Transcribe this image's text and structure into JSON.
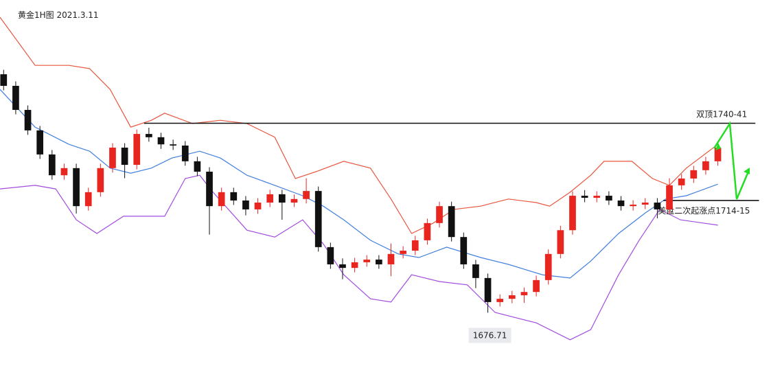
{
  "chart_data": {
    "type": "candlestick",
    "title": "黄金1H图  2021.3.11",
    "up_color": "#e8251f",
    "down_color": "#111111",
    "xlim": [
      -0.3,
      64.3
    ],
    "ylim": [
      1656,
      1782
    ],
    "open": [
      1757.0,
      1753.1,
      1745.0,
      1738.1,
      1730.0,
      1723.0,
      1725.4,
      1712.6,
      1717.3,
      1725.4,
      1732.3,
      1726.5,
      1736.9,
      1735.8,
      1733.4,
      1733.0,
      1727.7,
      1724.2,
      1712.6,
      1717.3,
      1714.5,
      1711.5,
      1713.8,
      1716.6,
      1713.8,
      1715.0,
      1717.7,
      1698.8,
      1693.0,
      1691.8,
      1693.7,
      1694.6,
      1693.0,
      1696.5,
      1697.6,
      1701.1,
      1706.9,
      1712.6,
      1702.2,
      1693.0,
      1688.4,
      1680.3,
      1681.4,
      1682.6,
      1683.7,
      1687.7,
      1696.5,
      1704.5,
      1716.1,
      1715.4,
      1716.1,
      1714.5,
      1712.6,
      1713.1,
      1713.8,
      1711.5,
      1719.6,
      1721.9,
      1724.7,
      1727.7
    ],
    "high": [
      1758.5,
      1754.6,
      1746.5,
      1739.6,
      1731.5,
      1726.9,
      1726.9,
      1718.8,
      1726.9,
      1733.8,
      1733.8,
      1738.4,
      1739.0,
      1737.3,
      1735.0,
      1734.5,
      1729.2,
      1725.7,
      1718.8,
      1718.8,
      1716.0,
      1715.3,
      1718.1,
      1718.1,
      1716.5,
      1722.0,
      1719.2,
      1700.3,
      1695.0,
      1695.2,
      1696.1,
      1696.1,
      1700.0,
      1699.1,
      1702.6,
      1708.4,
      1714.1,
      1714.1,
      1703.7,
      1694.5,
      1689.9,
      1682.9,
      1684.1,
      1685.2,
      1689.2,
      1698.0,
      1706.0,
      1717.6,
      1718.0,
      1717.6,
      1717.6,
      1716.0,
      1714.6,
      1715.3,
      1715.3,
      1722.0,
      1723.4,
      1726.2,
      1729.2,
      1734.5
    ],
    "low": [
      1751.6,
      1743.5,
      1736.6,
      1728.5,
      1721.5,
      1721.5,
      1710.1,
      1711.1,
      1715.8,
      1723.9,
      1722.0,
      1725.0,
      1734.3,
      1731.9,
      1731.5,
      1726.2,
      1722.7,
      1703.0,
      1711.1,
      1713.0,
      1709.5,
      1710.0,
      1712.3,
      1708.0,
      1712.3,
      1713.5,
      1697.3,
      1691.5,
      1688.0,
      1690.3,
      1692.2,
      1691.5,
      1689.0,
      1695.0,
      1696.1,
      1699.6,
      1705.4,
      1700.7,
      1691.5,
      1685.0,
      1676.71,
      1678.8,
      1679.9,
      1680.0,
      1682.2,
      1686.2,
      1695.0,
      1703.0,
      1713.9,
      1713.9,
      1713.0,
      1711.1,
      1711.1,
      1711.6,
      1708.5,
      1710.0,
      1718.1,
      1720.4,
      1723.2,
      1726.2
    ],
    "close": [
      1753.1,
      1745.0,
      1738.1,
      1730.0,
      1723.0,
      1725.4,
      1712.6,
      1717.3,
      1725.4,
      1732.3,
      1726.5,
      1736.9,
      1735.8,
      1733.4,
      1733.0,
      1727.7,
      1724.2,
      1712.6,
      1717.3,
      1714.5,
      1711.5,
      1713.8,
      1716.6,
      1713.8,
      1715.0,
      1717.7,
      1698.8,
      1693.0,
      1691.8,
      1693.7,
      1694.6,
      1693.0,
      1696.5,
      1697.6,
      1701.1,
      1706.9,
      1712.6,
      1702.2,
      1693.0,
      1688.4,
      1680.3,
      1681.4,
      1682.6,
      1683.7,
      1687.7,
      1696.5,
      1704.5,
      1716.1,
      1715.4,
      1716.1,
      1714.5,
      1712.6,
      1713.1,
      1713.8,
      1711.5,
      1719.6,
      1721.9,
      1724.7,
      1727.7,
      1732.3
    ],
    "bands": [
      {
        "color": "#e8553c",
        "x": [
          -0.3,
          2.6,
          5.4,
          7.1,
          8.8,
          10.5,
          12.2,
          13.3,
          15.6,
          17.9,
          20.1,
          22.4,
          24.1,
          25.8,
          28.1,
          30.3,
          32.0,
          33.7,
          35.5,
          37.2,
          39.4,
          41.7,
          44.0,
          45.1,
          46.8,
          48.5,
          49.6,
          51.9,
          53.6,
          55.0,
          56.4,
          59.0
        ],
        "values": [
          1776.2,
          1760.0,
          1760.0,
          1758.9,
          1751.9,
          1739.2,
          1741.5,
          1743.9,
          1740.4,
          1741.5,
          1740.4,
          1735.8,
          1721.9,
          1724.2,
          1727.7,
          1725.4,
          1715.0,
          1703.4,
          1706.9,
          1711.5,
          1712.6,
          1715.0,
          1713.8,
          1712.6,
          1717.3,
          1723.0,
          1727.7,
          1727.7,
          1721.9,
          1719.6,
          1725.4,
          1733.4
        ]
      },
      {
        "color": "#3f7fe0",
        "x": [
          -0.3,
          2.6,
          5.4,
          7.1,
          8.8,
          10.5,
          12.2,
          13.9,
          16.2,
          17.9,
          20.1,
          22.4,
          24.7,
          26.4,
          28.1,
          30.3,
          32.6,
          34.3,
          36.6,
          39.4,
          41.7,
          44.5,
          46.8,
          48.5,
          50.8,
          53.0,
          54.7,
          56.4,
          59.0
        ],
        "values": [
          1751.9,
          1739.2,
          1733.4,
          1731.1,
          1725.4,
          1723.7,
          1725.4,
          1728.8,
          1731.1,
          1728.8,
          1723.0,
          1719.6,
          1716.1,
          1712.6,
          1708.0,
          1701.1,
          1696.5,
          1695.3,
          1698.8,
          1695.3,
          1693.0,
          1689.5,
          1688.4,
          1694.1,
          1703.4,
          1710.3,
          1715.0,
          1716.1,
          1720.0
        ]
      },
      {
        "color": "#a24be0",
        "x": [
          -0.3,
          2.6,
          4.3,
          6.0,
          7.7,
          9.9,
          13.3,
          15.0,
          16.2,
          17.3,
          20.1,
          22.4,
          24.7,
          26.4,
          28.1,
          30.3,
          32.0,
          33.7,
          36.0,
          38.3,
          40.6,
          44.0,
          46.8,
          48.5,
          50.8,
          52.5,
          54.2,
          55.9,
          59.0
        ],
        "values": [
          1718.4,
          1719.6,
          1718.4,
          1708.0,
          1703.4,
          1709.2,
          1709.2,
          1721.9,
          1723.0,
          1717.3,
          1704.5,
          1702.2,
          1708.0,
          1699.9,
          1689.5,
          1681.4,
          1680.3,
          1689.5,
          1687.2,
          1686.1,
          1676.8,
          1673.3,
          1667.6,
          1671.0,
          1689.5,
          1701.1,
          1711.5,
          1708.0,
          1706.2
        ]
      }
    ],
    "levels": [
      {
        "label": "双顶1740-41",
        "value": 1740.5,
        "from": 11.6,
        "to": 62.1
      },
      {
        "label": "美盘二次起涨点1714-15",
        "value": 1714.5,
        "from": 54.5,
        "to": 62.4
      }
    ]
  }
}
